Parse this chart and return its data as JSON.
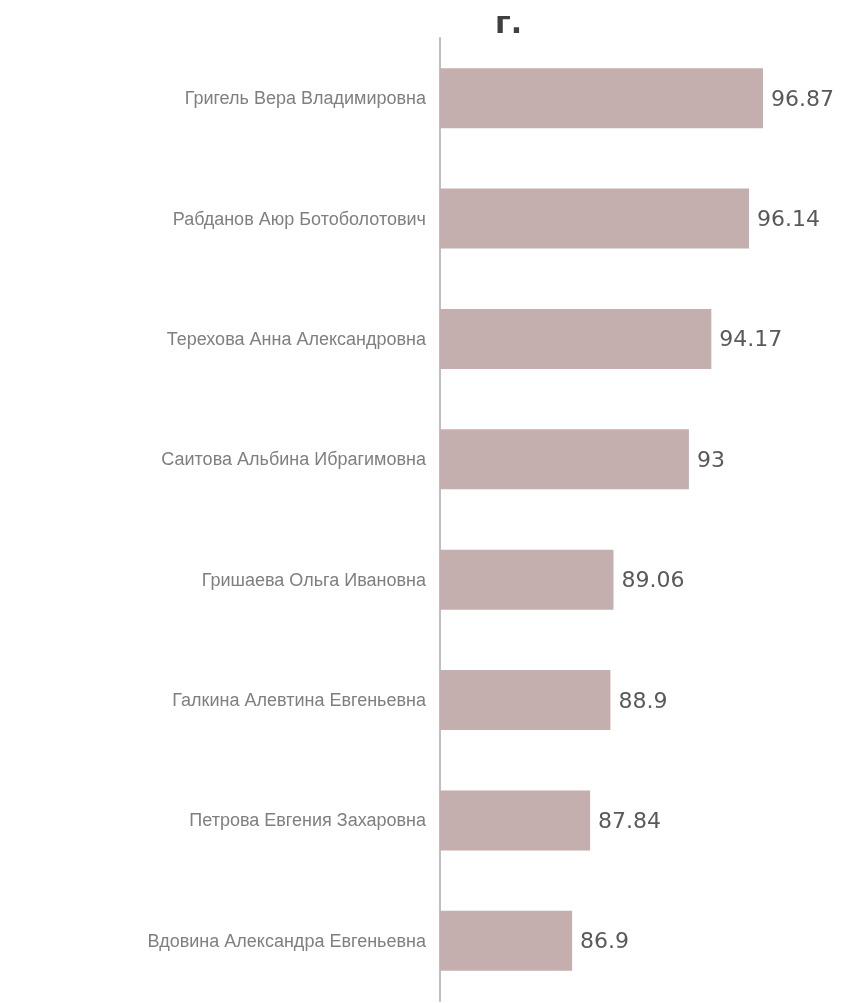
{
  "chart_data": {
    "type": "bar",
    "orientation": "horizontal",
    "title": "г.",
    "categories": [
      "Григель Вера Владимировна",
      "Рабданов Аюр Ботоболотович",
      "Терехова Анна Александровна",
      "Саитова Альбина Ибрагимовна",
      "Гришаева Ольга Ивановна",
      "Галкина Алевтина Евгеньевна",
      "Петрова Евгения Захаровна",
      "Вдовина Александра Евгеньевна"
    ],
    "values": [
      96.87,
      96.14,
      94.17,
      93,
      89.06,
      88.9,
      87.84,
      86.9
    ],
    "color": "#c4aeae",
    "xlim": [
      80,
      96.87
    ],
    "data_labels": true,
    "tick_labels": "y",
    "grid": false
  }
}
